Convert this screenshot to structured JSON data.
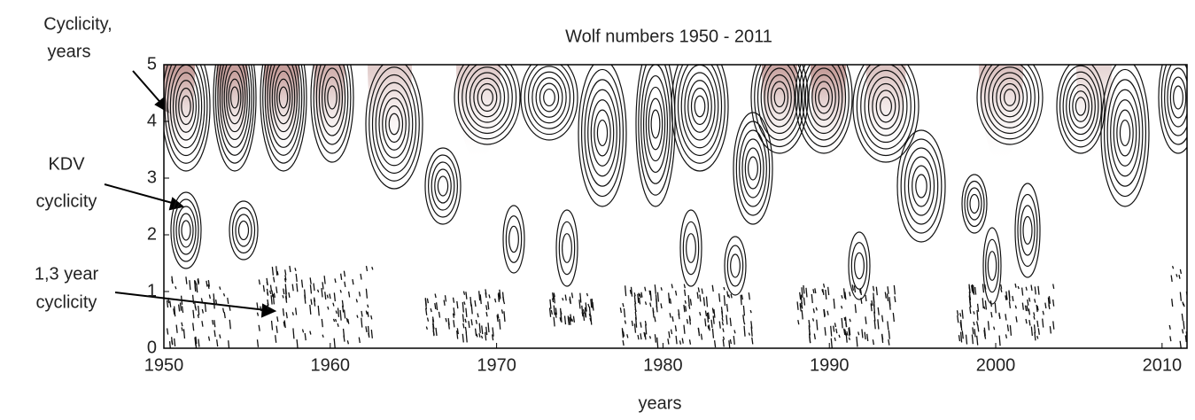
{
  "chart_data": {
    "type": "contour",
    "title": "Wolf numbers 1950 - 2011",
    "xlabel": "years",
    "ylabel": [
      "Cyclicity,",
      "years"
    ],
    "annotations": [
      {
        "lines": [
          "KDV",
          "cyclicity"
        ]
      },
      {
        "lines": [
          "1,3 year",
          "cyclicity"
        ]
      }
    ],
    "xlim": [
      1950,
      2011.5
    ],
    "xticks": [
      1950,
      1960,
      1970,
      1980,
      1990,
      2000,
      2010
    ],
    "ylim": [
      0,
      5
    ],
    "yticks": [
      0,
      1,
      2,
      3,
      4,
      5
    ]
  }
}
